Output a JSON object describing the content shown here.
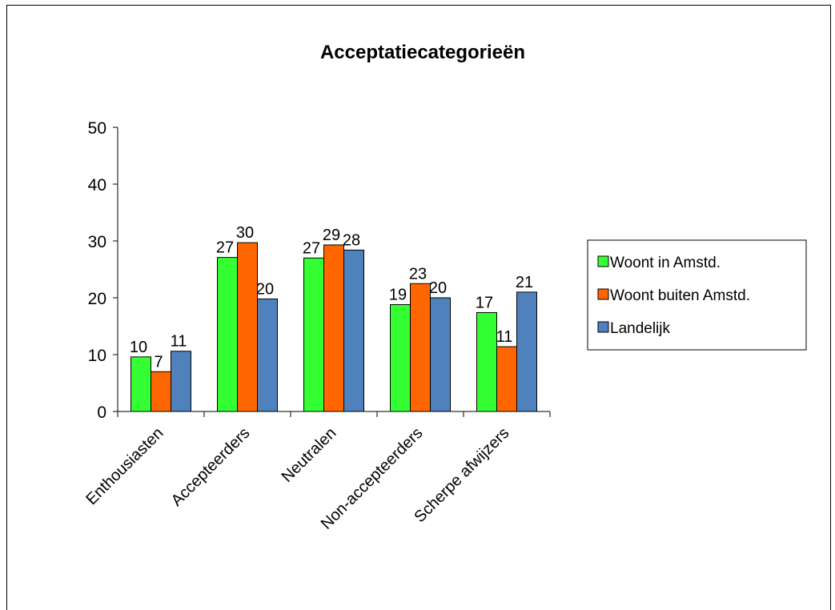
{
  "chart_data": {
    "type": "bar",
    "title": "Acceptatiecategorieën",
    "xlabel": "",
    "ylabel": "",
    "ylim": [
      0,
      50
    ],
    "yticks": [
      0,
      10,
      20,
      30,
      40,
      50
    ],
    "grid": false,
    "legend_position": "right",
    "categories": [
      "Enthousiasten",
      "Accepteerders",
      "Neutralen",
      "Non-accepteerders",
      "Scherpe afwijzers"
    ],
    "series": [
      {
        "name": "Woont in Amstd.",
        "color": "#33ff33",
        "values": [
          9.6,
          27.1,
          27.0,
          18.8,
          17.4
        ],
        "labels": [
          "10",
          "27",
          "27",
          "19",
          "17"
        ]
      },
      {
        "name": "Woont buiten Amstd.",
        "color": "#ff6600",
        "values": [
          7.0,
          29.7,
          29.3,
          22.5,
          11.4
        ],
        "labels": [
          "7",
          "30",
          "29",
          "23",
          "11"
        ]
      },
      {
        "name": "Landelijk",
        "color": "#4f81bd",
        "values": [
          10.6,
          19.8,
          28.4,
          20.0,
          21.0
        ],
        "labels": [
          "11",
          "20",
          "28",
          "20",
          "21"
        ]
      }
    ]
  }
}
